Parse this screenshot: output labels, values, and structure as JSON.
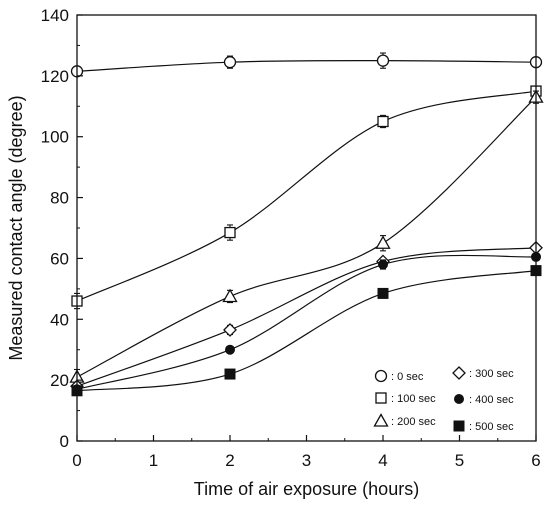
{
  "chart_data": {
    "type": "line",
    "xlabel": "Time of air exposure (hours)",
    "ylabel": "Measured contact angle (degree)",
    "xlim": [
      0,
      6
    ],
    "ylim": [
      0,
      140
    ],
    "xticks": [
      "0",
      "1",
      "2",
      "3",
      "4",
      "5",
      "6"
    ],
    "yticks": [
      "0",
      "20",
      "40",
      "60",
      "80",
      "100",
      "120",
      "140"
    ],
    "grid": false,
    "legend_position": "bottom-right",
    "x": [
      0,
      2,
      4,
      6
    ],
    "series": [
      {
        "name": ": 0 sec",
        "marker": "open-circle",
        "values": [
          121.5,
          124.5,
          125,
          124.5
        ],
        "errors": [
          1.5,
          2,
          2.5,
          1
        ]
      },
      {
        "name": ": 100 sec",
        "marker": "open-square",
        "values": [
          46,
          68.5,
          105,
          115
        ],
        "errors": [
          2.5,
          2.5,
          2,
          1
        ]
      },
      {
        "name": ": 200 sec",
        "marker": "open-triangle",
        "values": [
          21,
          47.5,
          65,
          113
        ],
        "errors": [
          2.5,
          2,
          2.5,
          2
        ]
      },
      {
        "name": ": 300 sec",
        "marker": "open-diamond",
        "values": [
          18,
          36.5,
          59,
          63.5
        ],
        "errors": [
          1,
          1.5,
          1,
          1
        ]
      },
      {
        "name": ": 400 sec",
        "marker": "filled-circle",
        "values": [
          17,
          30,
          58,
          60.5
        ],
        "errors": [
          1,
          1,
          1.5,
          1
        ]
      },
      {
        "name": ": 500 sec",
        "marker": "filled-square",
        "values": [
          16.5,
          22,
          48.5,
          56
        ],
        "errors": [
          1,
          1,
          1.5,
          1
        ]
      }
    ]
  }
}
